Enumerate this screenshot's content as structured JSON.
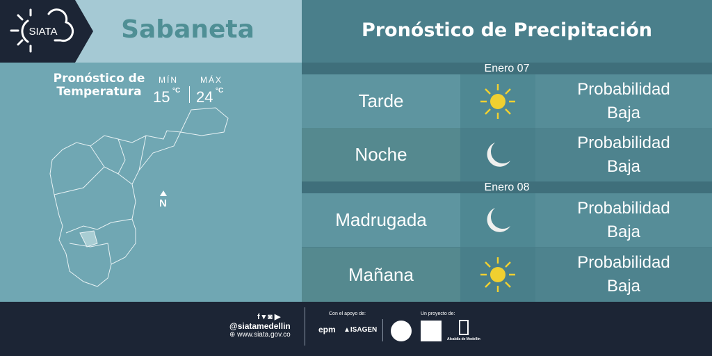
{
  "brand": {
    "logo_text": "SIATA"
  },
  "location": "Sabaneta",
  "temperature": {
    "title_line1": "Pronóstico de",
    "title_line2": "Temperatura",
    "min_label": "MÍN",
    "min_value": "15",
    "max_label": "MÁX",
    "max_value": "24",
    "unit": "°C"
  },
  "map": {
    "north_label": "N"
  },
  "precipitation": {
    "title": "Pronóstico de Precipitación",
    "days": [
      {
        "date": "Enero 07",
        "periods": [
          {
            "label": "Tarde",
            "icon": "sun-icon",
            "line1": "Probabilidad",
            "line2": "Baja"
          },
          {
            "label": "Noche",
            "icon": "moon-icon",
            "line1": "Probabilidad",
            "line2": "Baja"
          }
        ]
      },
      {
        "date": "Enero 08",
        "periods": [
          {
            "label": "Madrugada",
            "icon": "moon-icon",
            "line1": "Probabilidad",
            "line2": "Baja"
          },
          {
            "label": "Mañana",
            "icon": "sun-icon",
            "line1": "Probabilidad",
            "line2": "Baja"
          }
        ]
      }
    ]
  },
  "footer": {
    "handle": "@siatamedellin",
    "website": "www.siata.gov.co",
    "support_label": "Con el apoyo de:",
    "project_label": "Un proyecto de:",
    "sponsors": [
      "epm",
      "ISAGEN"
    ],
    "alcaldia": "Alcaldía de Medellín"
  },
  "colors": {
    "dark": "#1c2535",
    "sun": "#f0d030",
    "moon": "#f0f0ee"
  }
}
